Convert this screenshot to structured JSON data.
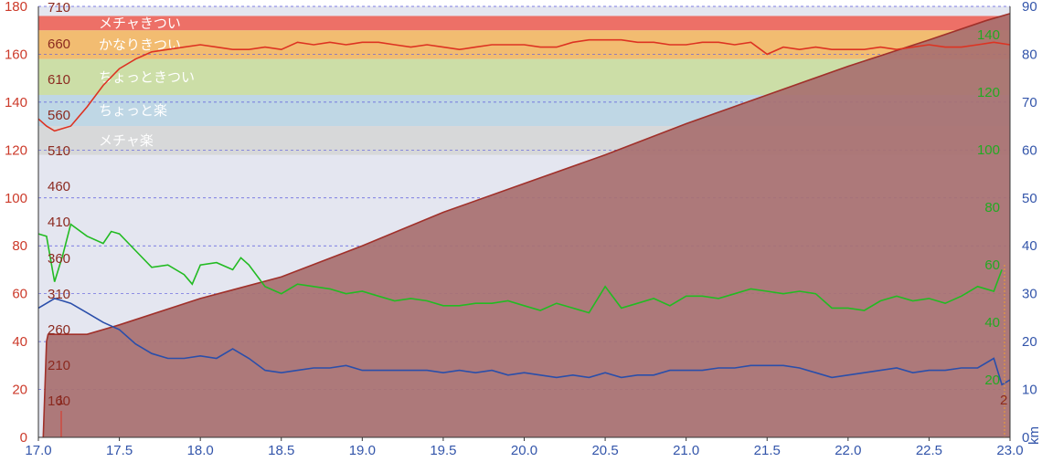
{
  "chart_data": {
    "type": "line",
    "x_range": [
      17.0,
      23.0
    ],
    "x_ticks": [
      "17.0",
      "17.5",
      "18.0",
      "18.5",
      "19.0",
      "19.5",
      "20.0",
      "20.5",
      "21.0",
      "21.5",
      "22.0",
      "22.5",
      "23.0"
    ],
    "x_unit_label": "km",
    "y_left": {
      "range": [
        0,
        180
      ],
      "ticks": [
        "0",
        "20",
        "40",
        "60",
        "80",
        "100",
        "120",
        "140",
        "160",
        "180"
      ],
      "color": "#cc3a2a"
    },
    "y_right_outer": {
      "range": [
        0,
        90
      ],
      "ticks": [
        "0",
        "10",
        "20",
        "30",
        "40",
        "50",
        "60",
        "70",
        "80",
        "90"
      ],
      "color": "#3355aa"
    },
    "y_right_green": {
      "ticks": [
        "20",
        "40",
        "60",
        "80",
        "100",
        "120",
        "140"
      ],
      "color": "#22aa22"
    },
    "y_inner_red": {
      "ticks": [
        "160",
        "210",
        "260",
        "310",
        "360",
        "410",
        "460",
        "510",
        "560",
        "610",
        "660",
        "710"
      ],
      "color": "#8b2a20"
    },
    "inner_markers": [
      "1",
      "2"
    ],
    "zones": [
      {
        "label": "メチャきつい",
        "from": 170,
        "to": 176,
        "color": "#ee5a4f"
      },
      {
        "label": "かなりきつい",
        "from": 158,
        "to": 170,
        "color": "#f5b45a"
      },
      {
        "label": "ちょっときつい",
        "from": 143,
        "to": 158,
        "color": "#c8dc9a"
      },
      {
        "label": "ちょっと楽",
        "from": 130,
        "to": 143,
        "color": "#b9d4e3"
      },
      {
        "label": "メチャ楽",
        "from": 118,
        "to": 130,
        "color": "#d5d5d5"
      }
    ],
    "series": [
      {
        "color": "#a0302a",
        "fill": "#a87070",
        "axis": "left",
        "x": [
          17.03,
          17.05,
          17.06,
          17.3,
          17.5,
          18.0,
          18.5,
          19.0,
          19.5,
          20.0,
          20.5,
          21.0,
          21.5,
          22.0,
          22.5,
          22.85,
          23.0
        ],
        "y": [
          0,
          40,
          43,
          43,
          47,
          58,
          67,
          80,
          94,
          106,
          118,
          131,
          143,
          155,
          166,
          174,
          177
        ]
      },
      {
        "color": "#dd3322",
        "axis": "left",
        "x": [
          17.0,
          17.05,
          17.1,
          17.2,
          17.3,
          17.4,
          17.5,
          17.6,
          17.7,
          17.8,
          17.9,
          18.0,
          18.1,
          18.2,
          18.3,
          18.4,
          18.5,
          18.6,
          18.7,
          18.8,
          18.9,
          19.0,
          19.1,
          19.2,
          19.3,
          19.4,
          19.5,
          19.6,
          19.7,
          19.8,
          19.9,
          20.0,
          20.1,
          20.2,
          20.3,
          20.4,
          20.5,
          20.6,
          20.7,
          20.8,
          20.9,
          21.0,
          21.1,
          21.2,
          21.3,
          21.4,
          21.5,
          21.6,
          21.7,
          21.8,
          21.9,
          22.0,
          22.1,
          22.2,
          22.3,
          22.4,
          22.5,
          22.6,
          22.7,
          22.8,
          22.9,
          23.0
        ],
        "y": [
          133,
          130,
          128,
          130,
          138,
          147,
          154,
          158,
          161,
          162,
          163,
          164,
          163,
          162,
          162,
          163,
          162,
          165,
          164,
          165,
          164,
          165,
          165,
          164,
          163,
          164,
          163,
          162,
          163,
          164,
          164,
          164,
          163,
          163,
          165,
          166,
          166,
          166,
          165,
          165,
          164,
          164,
          165,
          165,
          164,
          165,
          160,
          163,
          162,
          163,
          162,
          162,
          162,
          163,
          162,
          163,
          164,
          163,
          163,
          164,
          165,
          164
        ]
      },
      {
        "color": "#22bb22",
        "axis": "left",
        "x": [
          17.0,
          17.05,
          17.1,
          17.15,
          17.2,
          17.3,
          17.4,
          17.45,
          17.5,
          17.6,
          17.7,
          17.8,
          17.9,
          17.95,
          18.0,
          18.1,
          18.2,
          18.25,
          18.3,
          18.4,
          18.5,
          18.6,
          18.7,
          18.8,
          18.9,
          19.0,
          19.1,
          19.2,
          19.3,
          19.4,
          19.5,
          19.6,
          19.7,
          19.8,
          19.9,
          20.0,
          20.1,
          20.2,
          20.3,
          20.4,
          20.5,
          20.6,
          20.7,
          20.8,
          20.9,
          21.0,
          21.1,
          21.2,
          21.3,
          21.4,
          21.5,
          21.6,
          21.7,
          21.8,
          21.9,
          22.0,
          22.1,
          22.2,
          22.3,
          22.4,
          22.5,
          22.6,
          22.7,
          22.8,
          22.9,
          22.95
        ],
        "y": [
          85,
          84,
          65,
          76,
          89,
          84,
          81,
          86,
          85,
          78,
          71,
          72,
          68,
          64,
          72,
          73,
          70,
          75,
          72,
          63,
          60,
          64,
          63,
          62,
          60,
          61,
          59,
          57,
          58,
          57,
          55,
          55,
          56,
          56,
          57,
          55,
          53,
          56,
          54,
          52,
          63,
          54,
          56,
          58,
          55,
          59,
          59,
          58,
          60,
          62,
          61,
          60,
          61,
          60,
          54,
          54,
          53,
          57,
          59,
          57,
          58,
          56,
          59,
          63,
          61,
          70
        ]
      },
      {
        "color": "#2a4eaa",
        "axis": "left",
        "x": [
          17.0,
          17.05,
          17.1,
          17.15,
          17.2,
          17.3,
          17.4,
          17.5,
          17.6,
          17.7,
          17.8,
          17.9,
          18.0,
          18.1,
          18.2,
          18.3,
          18.4,
          18.5,
          18.6,
          18.7,
          18.8,
          18.9,
          19.0,
          19.1,
          19.2,
          19.3,
          19.4,
          19.5,
          19.6,
          19.7,
          19.8,
          19.9,
          20.0,
          20.1,
          20.2,
          20.3,
          20.4,
          20.5,
          20.6,
          20.7,
          20.8,
          20.9,
          21.0,
          21.1,
          21.2,
          21.3,
          21.4,
          21.5,
          21.6,
          21.7,
          21.8,
          21.9,
          22.0,
          22.1,
          22.2,
          22.3,
          22.4,
          22.5,
          22.6,
          22.7,
          22.8,
          22.9,
          22.95,
          23.0
        ],
        "y": [
          54,
          56,
          58,
          57,
          56,
          52,
          48,
          45,
          39,
          35,
          33,
          33,
          34,
          33,
          37,
          33,
          28,
          27,
          28,
          29,
          29,
          30,
          28,
          28,
          28,
          28,
          28,
          27,
          28,
          27,
          28,
          26,
          27,
          26,
          25,
          26,
          25,
          27,
          25,
          26,
          26,
          28,
          28,
          28,
          29,
          29,
          30,
          30,
          30,
          29,
          27,
          25,
          26,
          27,
          28,
          29,
          27,
          28,
          28,
          29,
          29,
          33,
          22,
          24
        ]
      }
    ]
  }
}
